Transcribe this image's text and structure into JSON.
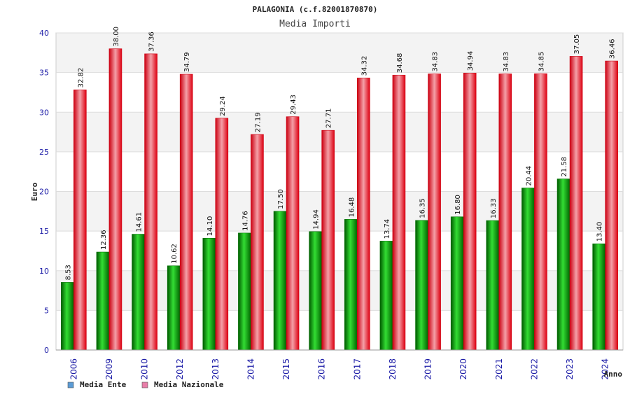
{
  "chart_data": {
    "type": "bar",
    "title": "PALAGONIA (c.f.82001870870)",
    "subtitle": "Media Importi",
    "xlabel": "Anno",
    "ylabel": "Euro",
    "ylim": [
      0,
      40
    ],
    "yticks": [
      0,
      5,
      10,
      15,
      20,
      25,
      30,
      35,
      40
    ],
    "grid": true,
    "legend_position": "bottom-left",
    "categories": [
      "2006",
      "2009",
      "2010",
      "2012",
      "2013",
      "2014",
      "2015",
      "2016",
      "2017",
      "2018",
      "2019",
      "2020",
      "2021",
      "2022",
      "2023",
      "2024"
    ],
    "series": [
      {
        "name": "Media Ente",
        "legend_color": "#5b9bd5",
        "bar_color": "#00b400",
        "values": [
          8.53,
          12.36,
          14.61,
          10.62,
          14.1,
          14.76,
          17.5,
          14.94,
          16.48,
          13.74,
          16.35,
          16.8,
          16.33,
          20.44,
          21.58,
          13.4
        ],
        "labels": [
          "8.53",
          "12.36",
          "14.61",
          "10.62",
          "14.10",
          "14.76",
          "17.50",
          "14.94",
          "16.48",
          "13.74",
          "16.35",
          "16.80",
          "16.33",
          "20.44",
          "21.58",
          "13.40"
        ]
      },
      {
        "name": "Media Nazionale",
        "legend_color": "#e87ea8",
        "bar_color": "#ee1122",
        "values": [
          32.82,
          38.0,
          37.36,
          34.79,
          29.24,
          27.19,
          29.43,
          27.71,
          34.32,
          34.68,
          34.83,
          34.94,
          34.83,
          34.85,
          37.05,
          36.46
        ],
        "labels": [
          "32.82",
          "38.00",
          "37.36",
          "34.79",
          "29.24",
          "27.19",
          "29.43",
          "27.71",
          "34.32",
          "34.68",
          "34.83",
          "34.94",
          "34.83",
          "34.85",
          "37.05",
          "36.46"
        ]
      }
    ]
  }
}
